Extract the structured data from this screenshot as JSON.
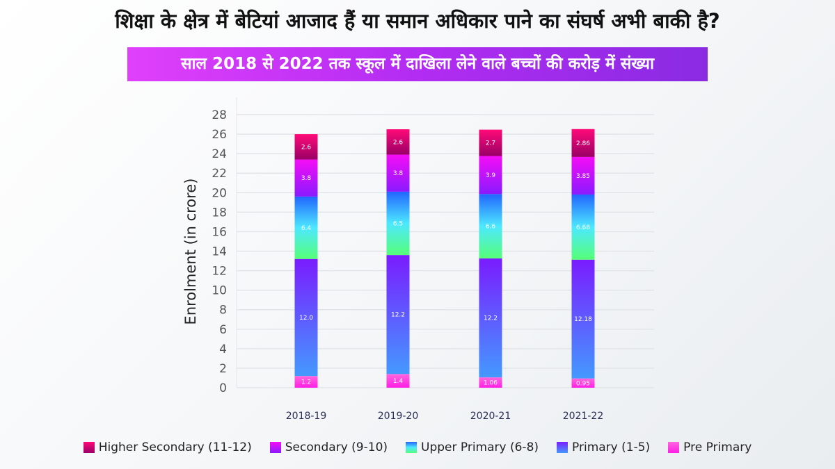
{
  "headline": "शिक्षा के क्षेत्र में बेटियां आजाद हैं या समान अधिकार पाने का संघर्ष अभी बाकी है?",
  "subtitle": "साल 2018 से 2022 तक स्कूल में दाखिला लेने वाले बच्चों की करोड़ में संख्या",
  "chart_data": {
    "type": "bar",
    "stacked": true,
    "ylabel": "Enrolment (in crore)",
    "xlabel": "",
    "ylim": [
      0,
      28
    ],
    "yticks": [
      0,
      2,
      4,
      6,
      8,
      10,
      12,
      14,
      16,
      18,
      20,
      22,
      24,
      26,
      28
    ],
    "grid": true,
    "legend_position": "bottom",
    "categories": [
      "2018-19",
      "2019-20",
      "2020-21",
      "2021-22"
    ],
    "series": [
      {
        "name": "Pre Primary",
        "values": [
          1.2,
          1.4,
          1.06,
          0.95
        ],
        "labels": [
          "1.2",
          "1.4",
          "1.06",
          "0.95"
        ],
        "colors": [
          "#ff66dd",
          "#ff1ee6"
        ]
      },
      {
        "name": "Primary (1-5)",
        "values": [
          12.0,
          12.2,
          12.2,
          12.18
        ],
        "labels": [
          "12.0",
          "12.2",
          "12.2",
          "12.18"
        ],
        "colors": [
          "#7a1cff",
          "#4499ff"
        ]
      },
      {
        "name": "Upper Primary (6-8)",
        "values": [
          6.4,
          6.5,
          6.6,
          6.68
        ],
        "labels": [
          "6.4",
          "6.5",
          "6.6",
          "6.68"
        ],
        "colors": [
          "#2266ff",
          "#4de8ff",
          "#55ff77"
        ]
      },
      {
        "name": "Secondary (9-10)",
        "values": [
          3.8,
          3.8,
          3.9,
          3.85
        ],
        "labels": [
          "3.8",
          "3.8",
          "3.9",
          "3.85"
        ],
        "colors": [
          "#f50df5",
          "#8a1aff"
        ]
      },
      {
        "name": "Higher Secondary (11-12)",
        "values": [
          2.6,
          2.6,
          2.7,
          2.86
        ],
        "labels": [
          "2.6",
          "2.6",
          "2.7",
          "2.86"
        ],
        "colors": [
          "#ff0a78",
          "#990066"
        ]
      }
    ],
    "legend_order": [
      4,
      3,
      2,
      1,
      0
    ]
  }
}
